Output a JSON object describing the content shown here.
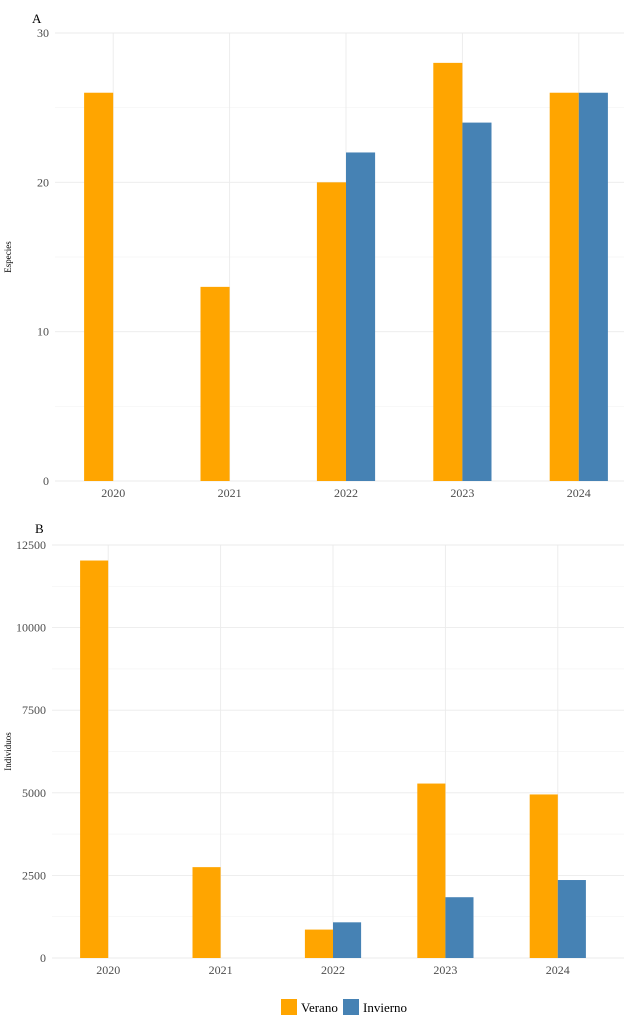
{
  "colors": {
    "verano": "#FFA500",
    "invierno": "#4682B4"
  },
  "legend": {
    "verano_label": "Verano",
    "invierno_label": "Invierno"
  },
  "chart_data": [
    {
      "type": "bar",
      "panel": "A",
      "ylabel": "Especies",
      "categories": [
        "2020",
        "2021",
        "2022",
        "2023",
        "2024"
      ],
      "ylim": [
        0,
        30
      ],
      "yticks": [
        0,
        10,
        20,
        30
      ],
      "series": [
        {
          "name": "Verano",
          "values": [
            26,
            13,
            20,
            28,
            26
          ]
        },
        {
          "name": "Invierno",
          "values": [
            null,
            null,
            22,
            24,
            26
          ]
        }
      ],
      "grid": true,
      "legend_position": "bottom"
    },
    {
      "type": "bar",
      "panel": "B",
      "ylabel": "Individuos",
      "categories": [
        "2020",
        "2021",
        "2022",
        "2023",
        "2024"
      ],
      "ylim": [
        0,
        12500
      ],
      "yticks": [
        0,
        2500,
        5000,
        7500,
        10000,
        12500
      ],
      "series": [
        {
          "name": "Verano",
          "values": [
            12030,
            2750,
            860,
            5280,
            4950
          ]
        },
        {
          "name": "Invierno",
          "values": [
            null,
            null,
            1080,
            1840,
            2360
          ]
        }
      ],
      "grid": true,
      "legend_position": "bottom"
    }
  ]
}
